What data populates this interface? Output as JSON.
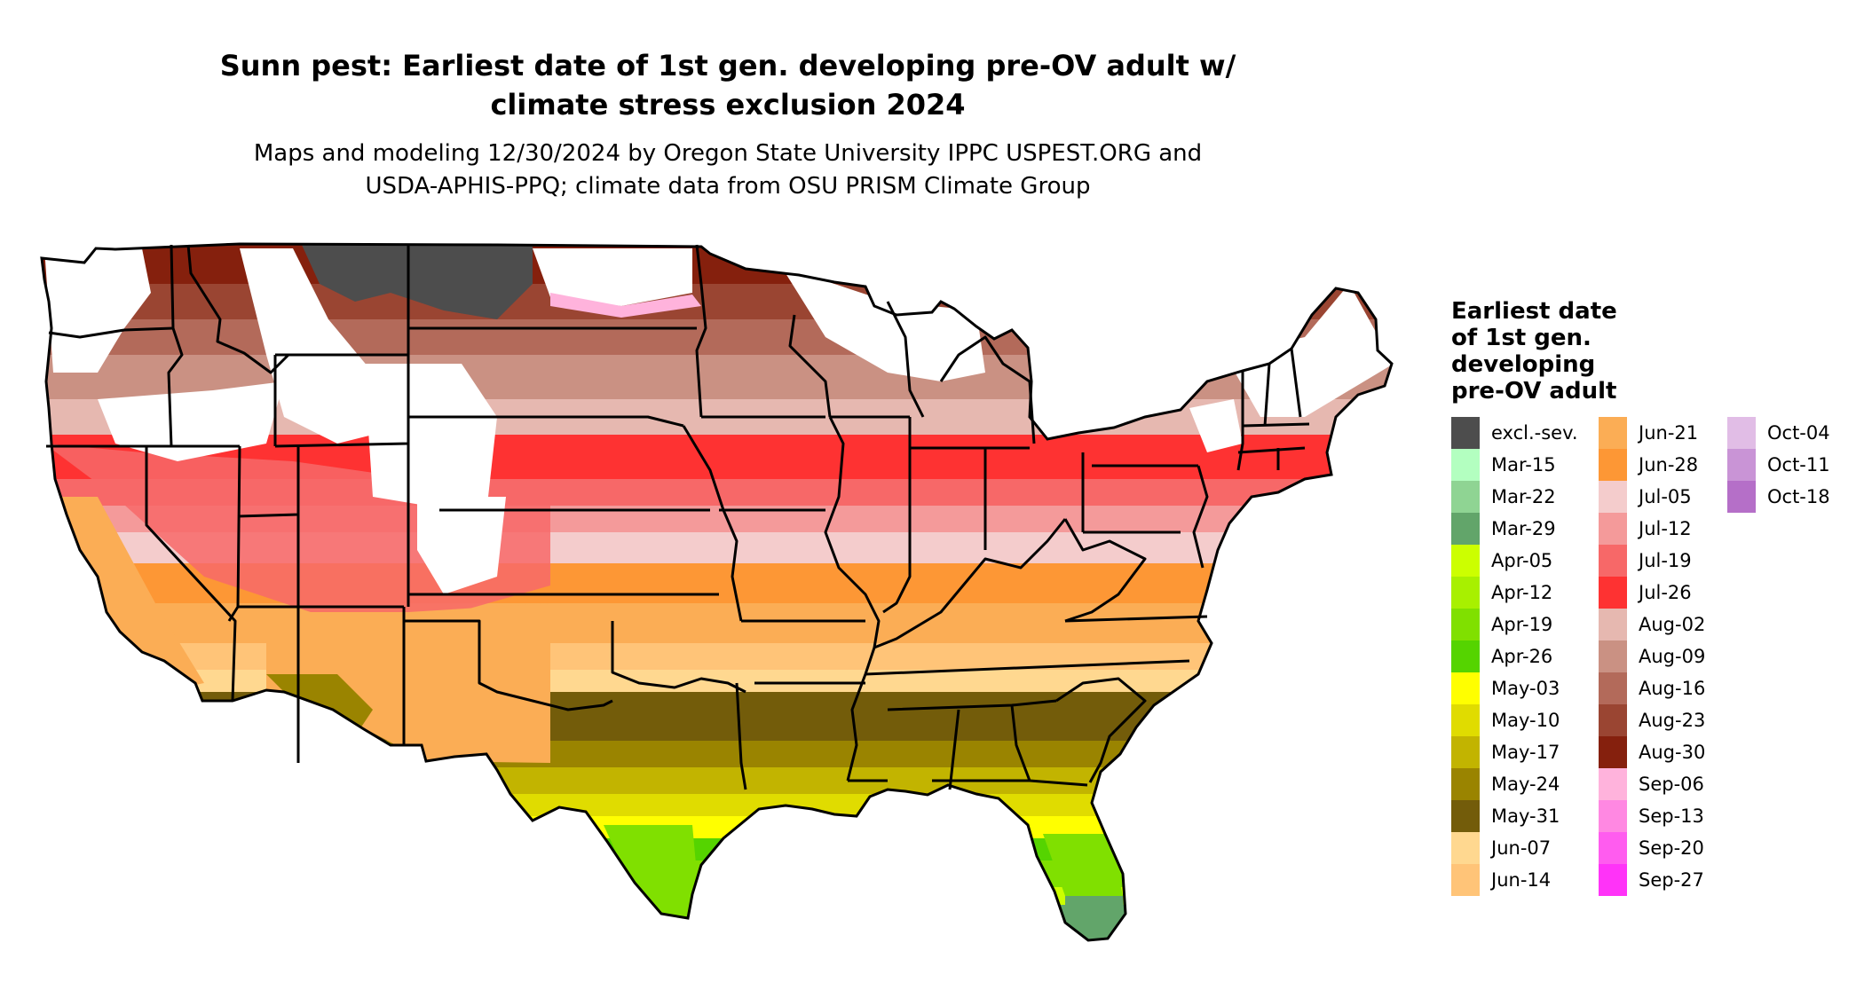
{
  "header": {
    "title_line1": "Sunn pest: Earliest date of 1st gen. developing pre-OV adult w/",
    "title_line2": "climate stress exclusion 2024",
    "subtitle_line1": "Maps and modeling 12/30/2024 by Oregon State University IPPC USPEST.ORG and",
    "subtitle_line2": "USDA-APHIS-PPQ; climate data from OSU PRISM Climate Group"
  },
  "legend": {
    "title_lines": [
      "Earliest date",
      "of 1st gen.",
      "developing",
      "pre-OV adult"
    ],
    "columns": [
      [
        {
          "label": "excl.-sev.",
          "color": "#4d4d4d"
        },
        {
          "label": "Mar-15",
          "color": "#b3ffc0"
        },
        {
          "label": "Mar-22",
          "color": "#8fd493"
        },
        {
          "label": "Mar-29",
          "color": "#62a56a"
        },
        {
          "label": "Apr-05",
          "color": "#ccff00"
        },
        {
          "label": "Apr-12",
          "color": "#a8f000"
        },
        {
          "label": "Apr-19",
          "color": "#80e000"
        },
        {
          "label": "Apr-26",
          "color": "#55d400"
        },
        {
          "label": "May-03",
          "color": "#ffff00"
        },
        {
          "label": "May-10",
          "color": "#e0dc00"
        },
        {
          "label": "May-17",
          "color": "#c2b400"
        },
        {
          "label": "May-24",
          "color": "#9a8400"
        },
        {
          "label": "May-31",
          "color": "#735c0a"
        },
        {
          "label": "Jun-07",
          "color": "#ffd890"
        },
        {
          "label": "Jun-14",
          "color": "#ffc478"
        }
      ],
      [
        {
          "label": "Jun-21",
          "color": "#fbad55"
        },
        {
          "label": "Jun-28",
          "color": "#fd9735"
        },
        {
          "label": "Jul-05",
          "color": "#f4cccc"
        },
        {
          "label": "Jul-12",
          "color": "#f49a9a"
        },
        {
          "label": "Jul-19",
          "color": "#f76868"
        },
        {
          "label": "Jul-26",
          "color": "#fe3232"
        },
        {
          "label": "Aug-02",
          "color": "#e6b8b0"
        },
        {
          "label": "Aug-09",
          "color": "#ca9183"
        },
        {
          "label": "Aug-16",
          "color": "#b36a5a"
        },
        {
          "label": "Aug-23",
          "color": "#9a4532"
        },
        {
          "label": "Aug-30",
          "color": "#85200d"
        },
        {
          "label": "Sep-06",
          "color": "#ffb3dc"
        },
        {
          "label": "Sep-13",
          "color": "#ff88e2"
        },
        {
          "label": "Sep-20",
          "color": "#ff5cef"
        },
        {
          "label": "Sep-27",
          "color": "#ff33f8"
        }
      ],
      [
        {
          "label": "Oct-04",
          "color": "#e1bde6"
        },
        {
          "label": "Oct-11",
          "color": "#c994d6"
        },
        {
          "label": "Oct-18",
          "color": "#b56fc8"
        }
      ]
    ]
  },
  "map": {
    "region": "Contiguous United States",
    "border_color": "#000000",
    "no_data_color": "#ffffff"
  }
}
